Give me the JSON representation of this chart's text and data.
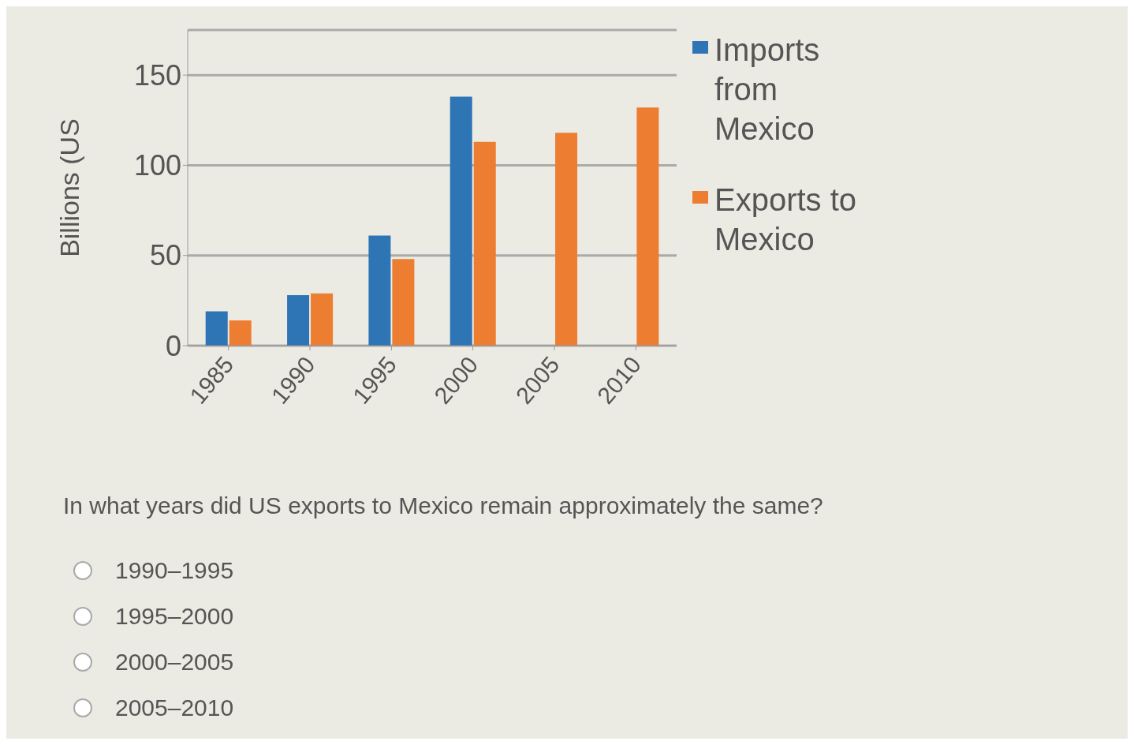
{
  "chart_data": {
    "type": "bar",
    "ylabel": "Billions (US",
    "categories": [
      "1985",
      "1990",
      "1995",
      "2000",
      "2005",
      "2010"
    ],
    "series": [
      {
        "name": "Imports from Mexico",
        "color": "#2e75b6",
        "values": [
          19,
          28,
          61,
          138,
          null,
          null
        ]
      },
      {
        "name": "Exports to Mexico",
        "color": "#ed7d31",
        "values": [
          14,
          29,
          48,
          113,
          118,
          132
        ]
      }
    ],
    "ylim": [
      0,
      175
    ],
    "yticks": [
      0,
      50,
      100,
      150
    ],
    "grid": "y",
    "legend": "right",
    "annotations": [
      "In what years did US exports to Mexico remain approximately the same?",
      "1990–1995",
      "1995–2000",
      "2000–2005",
      "2005–2010"
    ]
  }
}
